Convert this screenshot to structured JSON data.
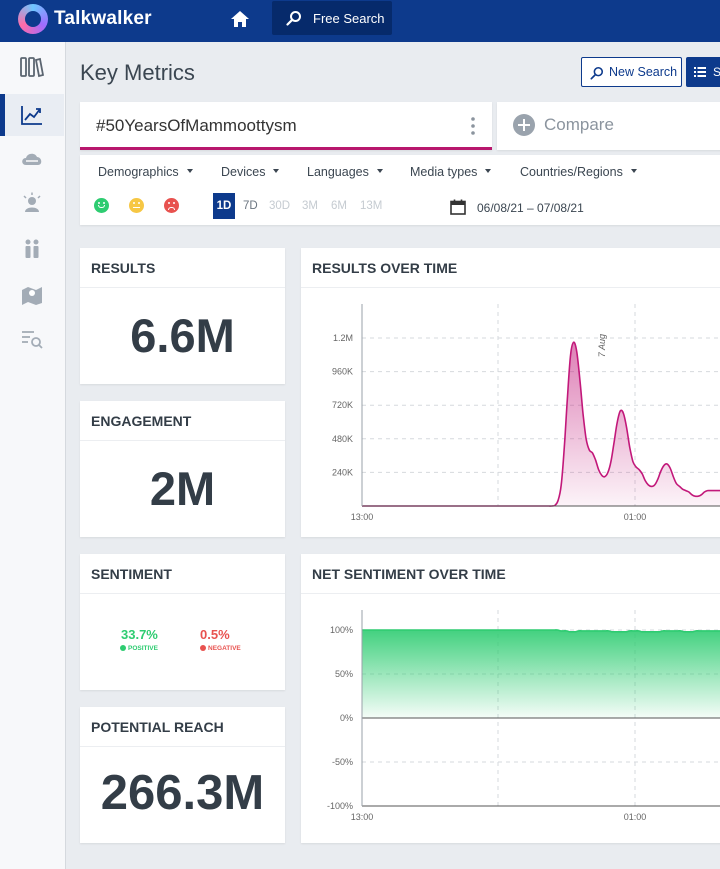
{
  "app": {
    "brand": "Talkwalker",
    "free_search_label": "Free Search"
  },
  "header": {
    "title": "Key Metrics",
    "new_search_label": "New Search",
    "secondary_label": "S"
  },
  "query": {
    "text": "#50YearsOfMammoottysm",
    "compare_label": "Compare"
  },
  "filters": {
    "dropdowns": [
      "Demographics",
      "Devices",
      "Languages",
      "Media types",
      "Countries/Regions"
    ],
    "periods": [
      {
        "label": "1D",
        "state": "active"
      },
      {
        "label": "7D",
        "state": "normal"
      },
      {
        "label": "30D",
        "state": "disabled"
      },
      {
        "label": "3M",
        "state": "disabled"
      },
      {
        "label": "6M",
        "state": "disabled"
      },
      {
        "label": "13M",
        "state": "disabled"
      }
    ],
    "date_range": "06/08/21 – 07/08/21"
  },
  "metrics": {
    "results": {
      "title": "RESULTS",
      "value": "6.6M"
    },
    "engagement": {
      "title": "ENGAGEMENT",
      "value": "2M"
    },
    "sentiment": {
      "title": "SENTIMENT",
      "positive": "33.7%",
      "positive_label": "POSITIVE",
      "negative": "0.5%",
      "negative_label": "NEGATIVE"
    },
    "reach": {
      "title": "POTENTIAL REACH",
      "value": "266.3M"
    }
  },
  "colors": {
    "brand": "#0d3a8c",
    "accent": "#b8176d",
    "positive": "#2ecc71",
    "negative": "#e8524f"
  },
  "chart_data": [
    {
      "type": "area",
      "title": "RESULTS OVER TIME",
      "x_ticks": [
        "13:00",
        "01:00"
      ],
      "y_ticks": [
        "240K",
        "480K",
        "720K",
        "960K",
        "1.2M"
      ],
      "ylim": [
        0,
        1300000
      ],
      "annotation": "7 Aug",
      "color": "#c2187a",
      "values": [
        0,
        0,
        0,
        0,
        0,
        0,
        0,
        0,
        0,
        0,
        0,
        0,
        0,
        0,
        0,
        0,
        0,
        0,
        0,
        0,
        0,
        0,
        0,
        0,
        0,
        0,
        0,
        0,
        0,
        0,
        0,
        0,
        0,
        0,
        0,
        0,
        0,
        0,
        0,
        0,
        0,
        0,
        0,
        0,
        0,
        0,
        0,
        0,
        0,
        0,
        0,
        0,
        0,
        0,
        0,
        0,
        0,
        0,
        0,
        0,
        0,
        0,
        5000,
        40000,
        150000,
        420000,
        780000,
        1080000,
        1170000,
        1100000,
        900000,
        660000,
        480000,
        400000,
        380000,
        330000,
        260000,
        220000,
        210000,
        240000,
        320000,
        460000,
        600000,
        680000,
        660000,
        560000,
        420000,
        320000,
        280000,
        260000,
        230000,
        180000,
        150000,
        140000,
        150000,
        190000,
        250000,
        290000,
        300000,
        270000,
        210000,
        160000,
        140000,
        120000,
        110000,
        100000,
        80000,
        70000,
        70000,
        80000,
        100000,
        110000,
        110000,
        110000,
        110000,
        110000
      ]
    },
    {
      "type": "area",
      "title": "NET SENTIMENT OVER TIME",
      "x_ticks": [
        "13:00",
        "01:00"
      ],
      "y_ticks": [
        "-100%",
        "-50%",
        "0%",
        "50%",
        "100%"
      ],
      "ylim": [
        -100,
        100
      ],
      "color": "#2ecc71",
      "values": [
        100,
        100,
        100,
        100,
        100,
        100,
        100,
        100,
        100,
        100,
        100,
        100,
        100,
        100,
        100,
        100,
        100,
        100,
        100,
        100,
        100,
        100,
        100,
        100,
        100,
        100,
        100,
        100,
        100,
        100,
        100,
        100,
        100,
        100,
        100,
        100,
        100,
        100,
        100,
        100,
        100,
        100,
        100,
        100,
        100,
        100,
        100,
        100,
        100,
        100,
        100,
        100,
        100,
        100,
        100,
        100,
        100,
        100,
        100,
        100,
        100,
        100,
        100,
        100,
        100,
        100,
        99,
        99,
        99,
        98,
        98,
        98,
        99,
        99,
        99,
        99,
        99,
        99,
        99,
        99,
        99,
        99,
        99,
        98,
        98,
        98,
        98,
        98,
        98,
        99,
        99,
        99,
        99,
        98,
        98,
        98,
        98,
        98,
        98,
        98,
        99,
        99,
        99,
        99,
        99,
        99,
        99,
        98,
        98,
        98,
        98,
        99,
        99,
        99,
        99,
        99,
        99,
        99,
        99,
        99
      ]
    }
  ]
}
